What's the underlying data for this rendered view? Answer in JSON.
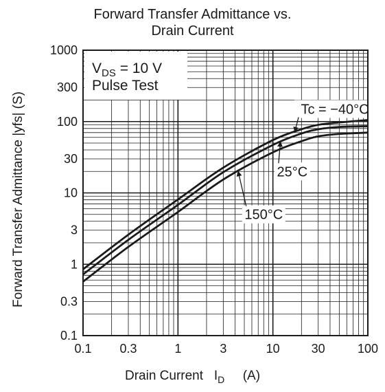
{
  "chart_data": {
    "type": "line",
    "title_lines": [
      "Forward Transfer Admittance vs.",
      "Drain Current"
    ],
    "xlabel": "Drain Current",
    "xlabel_symbol": "I",
    "xlabel_subscript": "D",
    "xlabel_unit": "(A)",
    "ylabel": "Forward Transfer Admittance |yfs|  (S)",
    "x_scale": "log",
    "y_scale": "log",
    "xlim": [
      0.1,
      100
    ],
    "ylim": [
      0.1,
      1000
    ],
    "x_ticks": [
      0.1,
      0.3,
      1,
      3,
      10,
      30,
      100
    ],
    "x_tick_labels": [
      "0.1",
      "0.3",
      "1",
      "3",
      "10",
      "30",
      "100"
    ],
    "y_ticks": [
      0.1,
      0.3,
      1,
      3,
      10,
      30,
      100,
      300,
      1000
    ],
    "y_tick_labels": [
      "0.1",
      "0.3",
      "1",
      "3",
      "10",
      "30",
      "100",
      "300",
      "1000"
    ],
    "grid": true,
    "conditions": {
      "vds_prefix": "V",
      "vds_subscript": "DS",
      "vds_value": " = 10 V",
      "pulse": "Pulse Test"
    },
    "series": [
      {
        "name": "Tc = −40°C",
        "x": [
          0.1,
          0.3,
          1,
          3,
          10,
          20,
          30,
          50,
          100
        ],
        "y": [
          0.85,
          2.6,
          8.1,
          22.6,
          55,
          78,
          90,
          97,
          105
        ]
      },
      {
        "name": "25°C",
        "x": [
          0.1,
          0.3,
          1,
          3,
          10,
          20,
          30,
          50,
          100
        ],
        "y": [
          0.72,
          2.2,
          6.8,
          19.5,
          47,
          68,
          78,
          84,
          86
        ]
      },
      {
        "name": "150°C",
        "x": [
          0.1,
          0.3,
          1,
          3,
          10,
          20,
          30,
          50,
          100
        ],
        "y": [
          0.57,
          1.75,
          5.4,
          15.4,
          37,
          53,
          62,
          67,
          70
        ]
      }
    ],
    "annotations": [
      {
        "text": "Tc = −40°C",
        "series": 0,
        "at_x": 17,
        "text_x": 45,
        "text_y": 150
      },
      {
        "text": "25°C",
        "series": 1,
        "at_x": 12,
        "text_x": 16,
        "text_y": 20
      },
      {
        "text": "150°C",
        "series": 2,
        "at_x": 4.3,
        "text_x": 8,
        "text_y": 5
      }
    ]
  }
}
